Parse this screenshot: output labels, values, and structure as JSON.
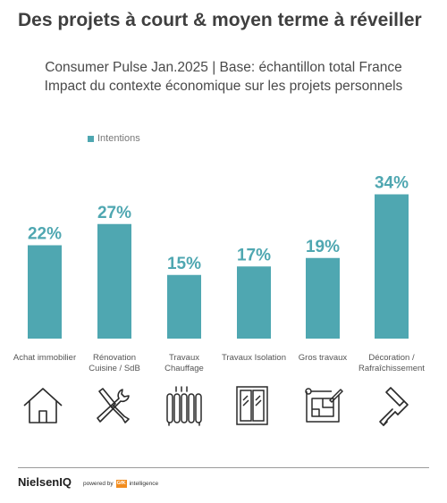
{
  "header": {
    "title": "Des projets à court & moyen terme à réveiller",
    "subtitle_line1": "Consumer Pulse Jan.2025 | Base: échantillon total France",
    "subtitle_line2": "Impact du contexte économique sur les projets personnels"
  },
  "chart_data": {
    "type": "bar",
    "categories": [
      "Achat immobilier",
      "Rénovation\nCuisine / SdB",
      "Travaux\nChauffage",
      "Travaux Isolation",
      "Gros travaux",
      "Décoration /\nRafraîchissement"
    ],
    "series": [
      {
        "name": "Intentions",
        "values": [
          22,
          27,
          15,
          17,
          19,
          34
        ]
      }
    ],
    "value_labels": [
      "22%",
      "27%",
      "15%",
      "17%",
      "19%",
      "34%"
    ],
    "unit": "%",
    "ylim": [
      0,
      40
    ],
    "legend": "top-left",
    "grid": false,
    "color": "#4fa7b1"
  },
  "icons": [
    "house-icon",
    "tools-icon",
    "radiator-icon",
    "window-icon",
    "blueprint-icon",
    "paint-roller-icon"
  ],
  "footer": {
    "logo": "NielsenIQ",
    "powered_by": "powered by",
    "gfk": "GfK",
    "intelligence": "intelligence"
  }
}
